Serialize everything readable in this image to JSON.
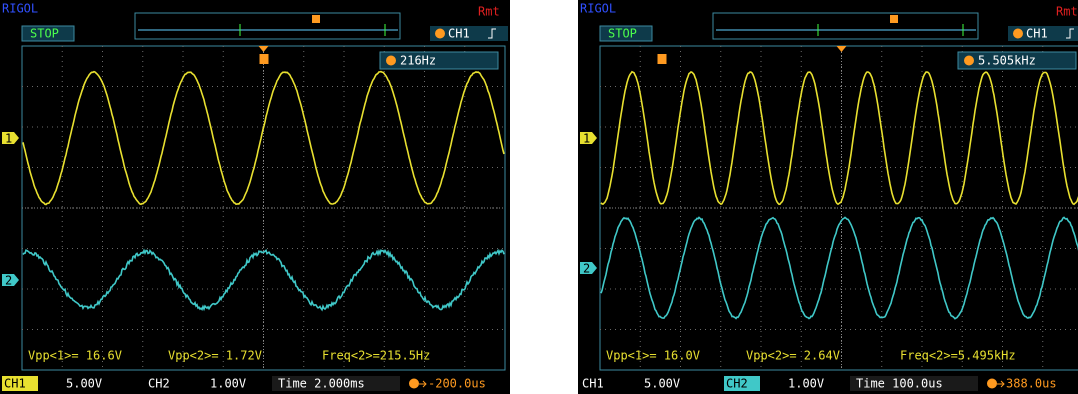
{
  "scopes": [
    {
      "brand": "RIGOL",
      "status": "STOP",
      "remote": "Rmt",
      "trigger_source": "CH1",
      "frequency": "216Hz",
      "channel_markers": [
        "1",
        "2"
      ],
      "measurements": [
        "Vpp<1>= 16.6V",
        "Vpp<2>= 1.72V",
        "Freq<2>=215.5Hz"
      ],
      "ch1": {
        "label": "CH1",
        "scale": "5.00V"
      },
      "ch2": {
        "label": "CH2",
        "scale": "1.00V"
      },
      "timebase": "Time 2.000ms",
      "trigger_offset": "-200.0us"
    },
    {
      "brand": "RIGOL",
      "status": "STOP",
      "remote": "Rmt",
      "trigger_source": "CH1",
      "frequency": "5.505kHz",
      "channel_markers": [
        "1",
        "2"
      ],
      "measurements": [
        "Vpp<1>= 16.0V",
        "Vpp<2>= 2.64V",
        "Freq<2>=5.495kHz"
      ],
      "ch1": {
        "label": "CH1",
        "scale": "5.00V"
      },
      "ch2": {
        "label": "CH2",
        "scale": "1.00V"
      },
      "timebase": "Time 100.0us",
      "trigger_offset": "388.0us"
    }
  ]
}
